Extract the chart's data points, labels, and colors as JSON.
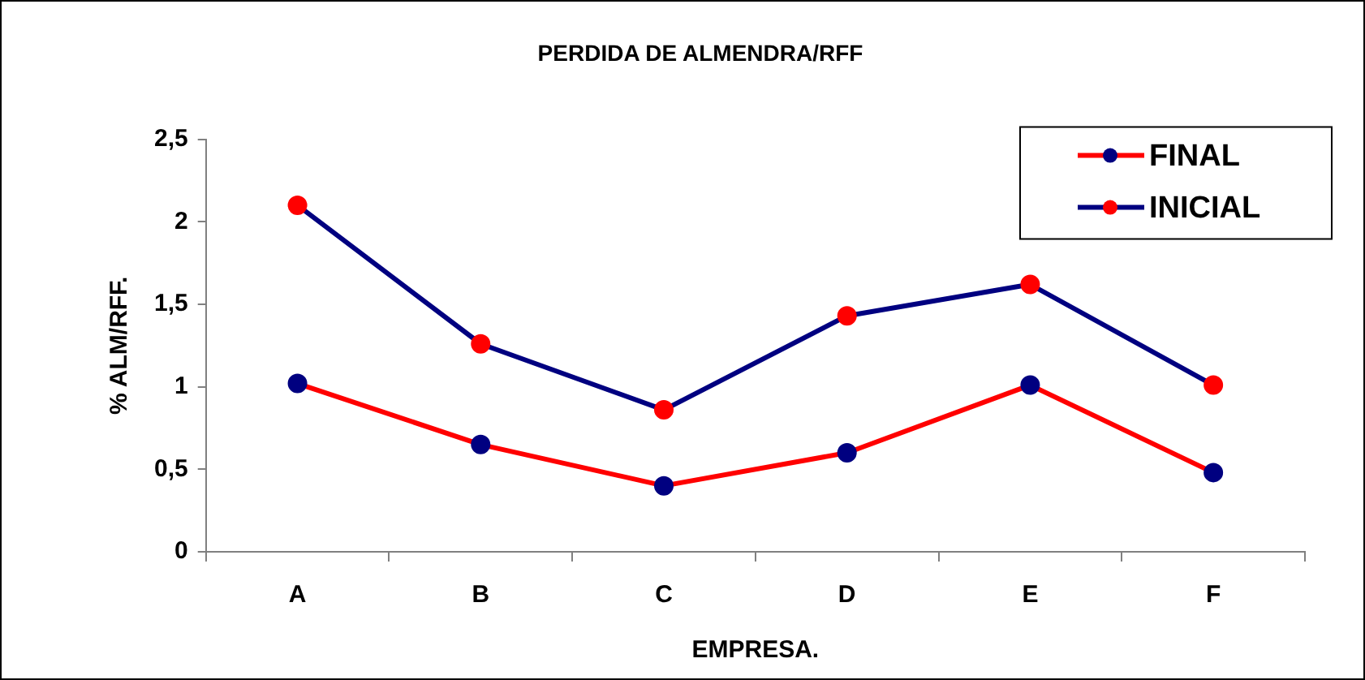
{
  "chart_data": {
    "type": "line",
    "title": "PERDIDA DE ALMENDRA/RFF",
    "xlabel": "EMPRESA.",
    "ylabel": "% ALM/RFF.",
    "categories": [
      "A",
      "B",
      "C",
      "D",
      "E",
      "F"
    ],
    "series": [
      {
        "name": "FINAL",
        "color": "#ff0000",
        "colors": [
          "#000080",
          "#000080",
          "#000080",
          "#000080",
          "#000080",
          "#000080"
        ],
        "values": [
          1.02,
          0.65,
          0.4,
          0.6,
          1.01,
          0.48
        ]
      },
      {
        "name": "INICIAL",
        "color": "#000080",
        "colors": [
          "#ff0000",
          "#ff0000",
          "#ff0000",
          "#ff0000",
          "#ff0000",
          "#ff0000"
        ],
        "values": [
          2.1,
          1.26,
          0.86,
          1.43,
          1.62,
          1.01
        ]
      }
    ],
    "ylim": [
      0,
      2.5
    ],
    "yticks": [
      0,
      {
        "value": 0.5,
        "label": "0,5"
      },
      1,
      {
        "value": 1.5,
        "label": "1,5"
      },
      2,
      {
        "value": 2.5,
        "label": "2,5"
      }
    ],
    "grid": false,
    "legend": "top right",
    "marker": "circle",
    "line_style": "solid"
  }
}
